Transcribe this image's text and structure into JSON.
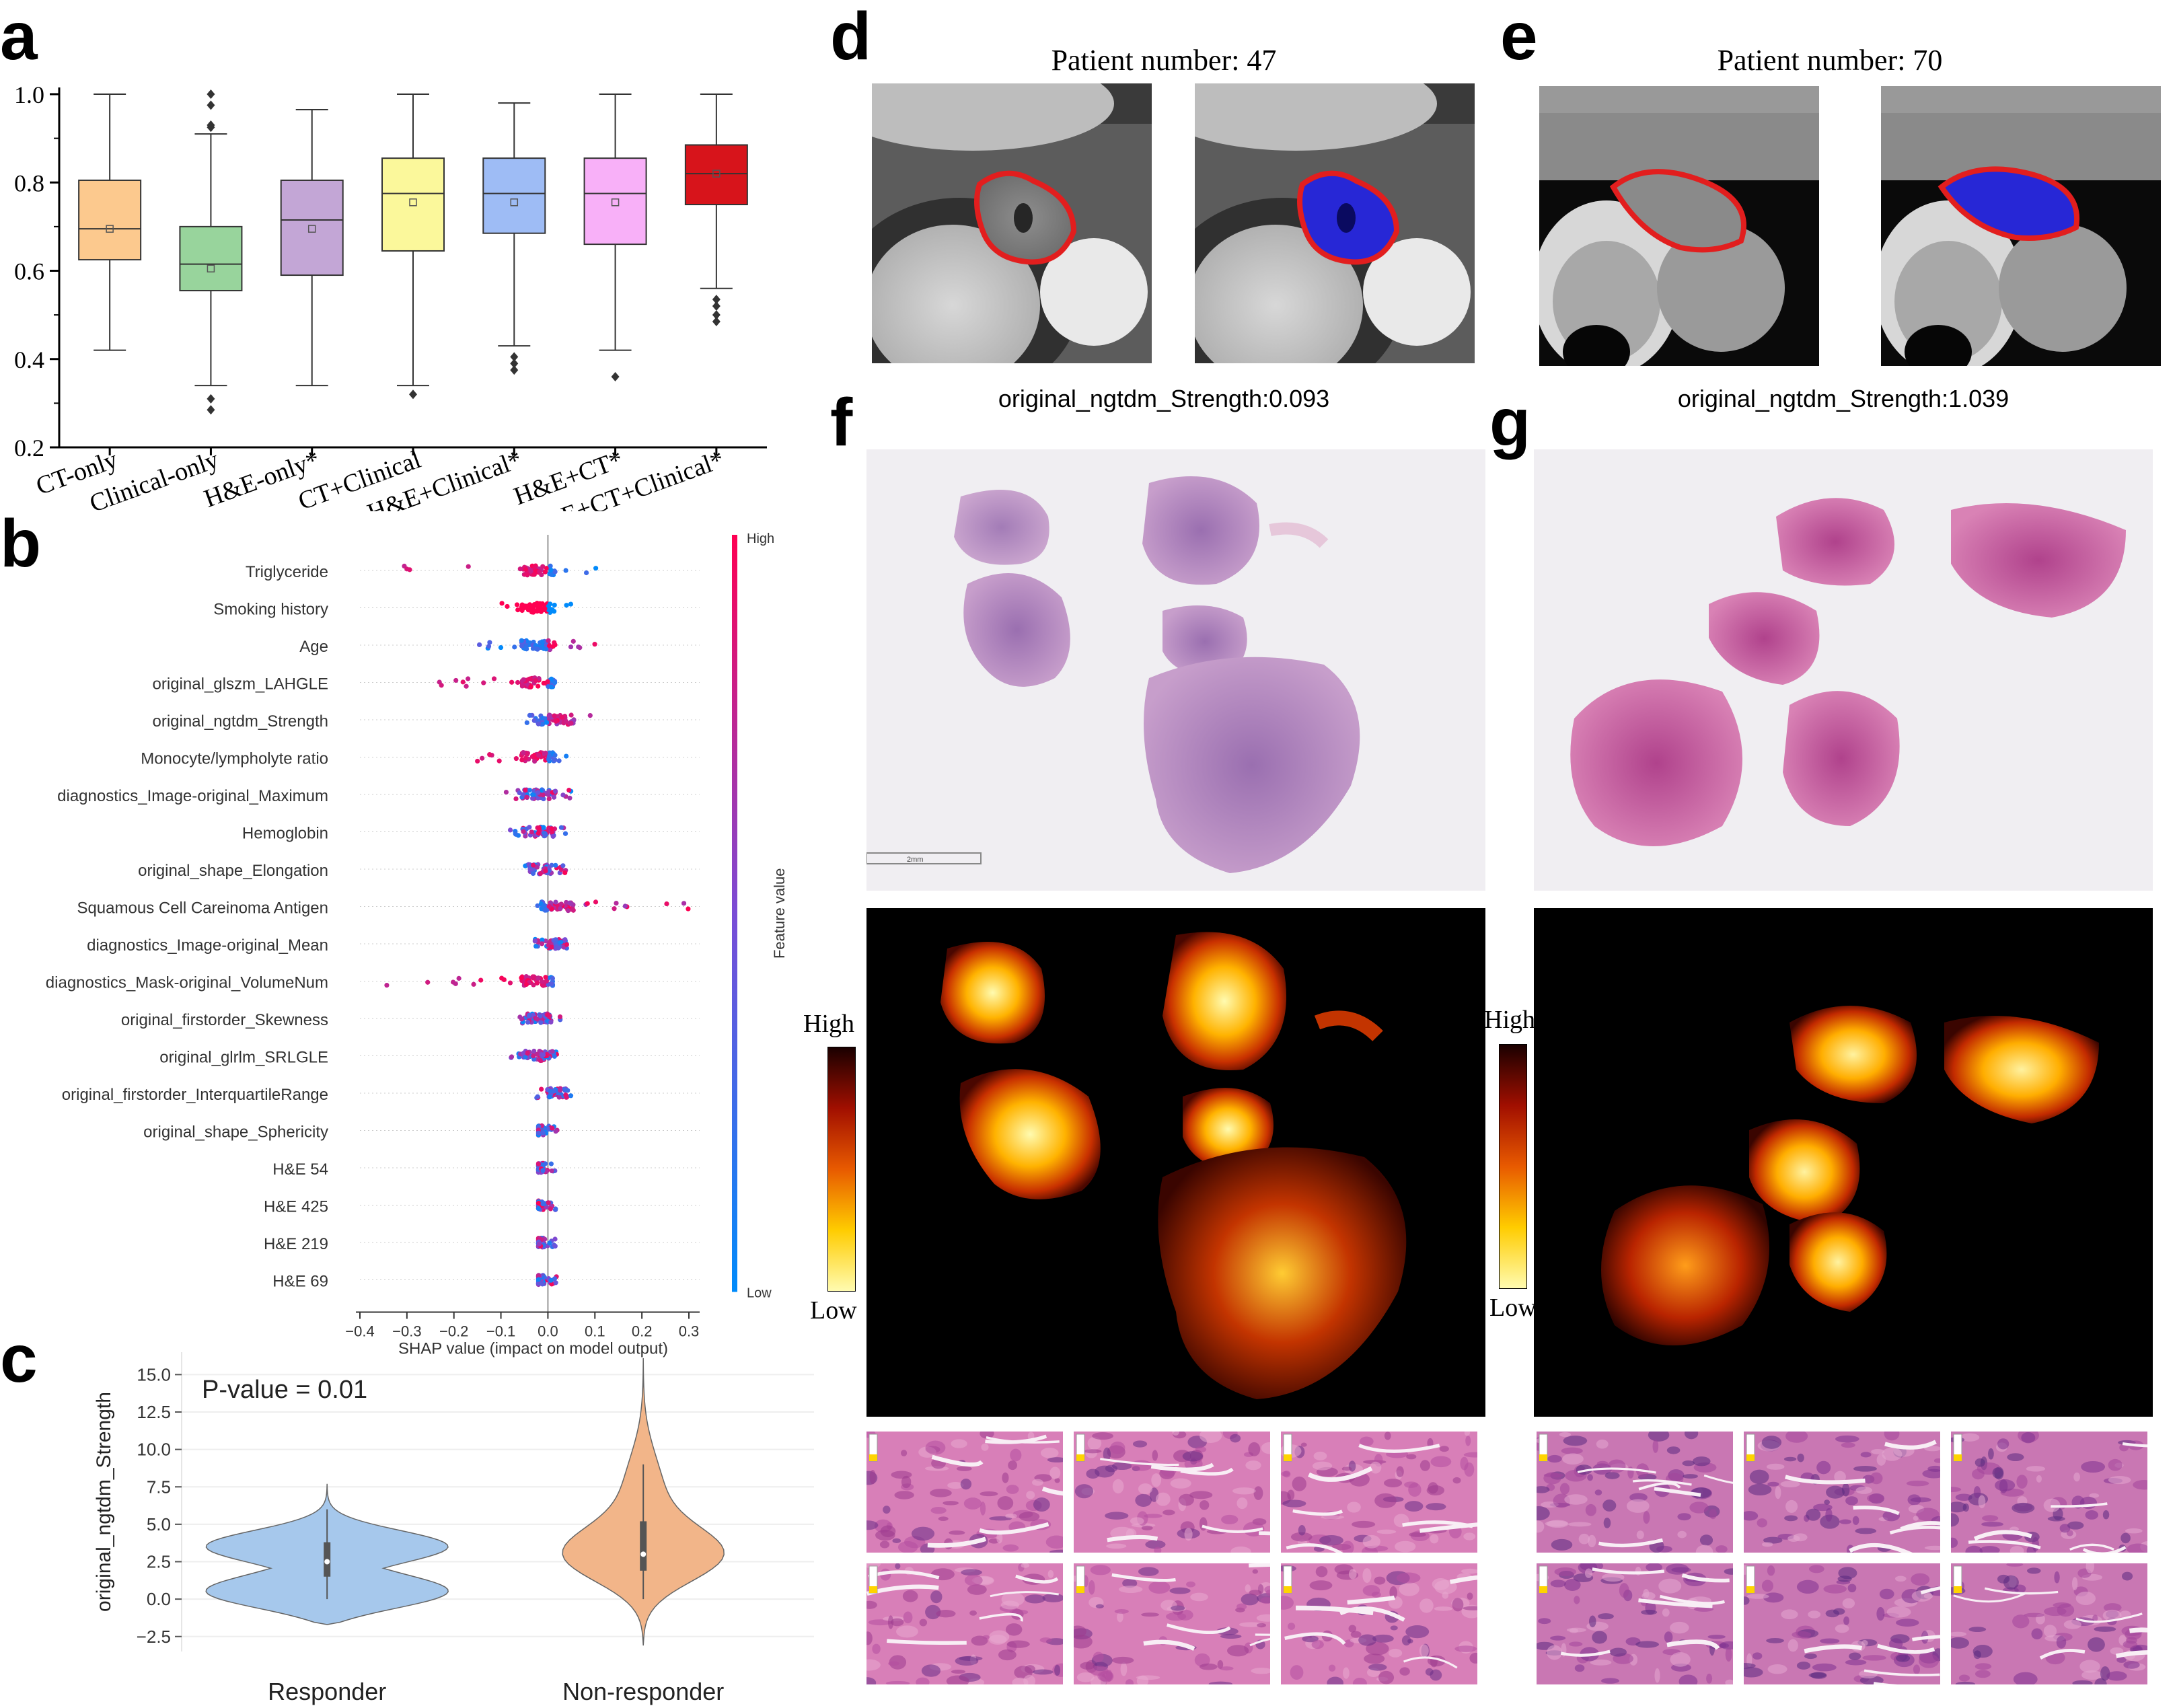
{
  "panels": {
    "a": "a",
    "b": "b",
    "c": "c",
    "d": "d",
    "e": "e",
    "f": "f",
    "g": "g"
  },
  "chart_data": [
    {
      "id": "a",
      "type": "box",
      "categories": [
        "CT-only",
        "Clinical-only",
        "H&E-only*",
        "CT+Clinical",
        "H&E+Clinical*",
        "H&E+CT*",
        "H&E+CT+Clinical*"
      ],
      "colors": [
        "#fcc98e",
        "#98d49c",
        "#c3a6d6",
        "#fbf89b",
        "#9ebcf5",
        "#f8b0f8",
        "#d7141b"
      ],
      "boxes": [
        {
          "whisker_low": 0.42,
          "q1": 0.625,
          "median": 0.695,
          "q3": 0.805,
          "whisker_high": 1.0,
          "mean": 0.695,
          "outliers": []
        },
        {
          "whisker_low": 0.34,
          "q1": 0.555,
          "median": 0.615,
          "q3": 0.7,
          "whisker_high": 0.91,
          "mean": 0.605,
          "outliers": [
            0.285,
            0.31,
            0.925,
            0.93,
            0.975,
            1.0
          ]
        },
        {
          "whisker_low": 0.34,
          "q1": 0.59,
          "median": 0.715,
          "q3": 0.805,
          "whisker_high": 0.965,
          "mean": 0.695,
          "outliers": []
        },
        {
          "whisker_low": 0.34,
          "q1": 0.645,
          "median": 0.775,
          "q3": 0.855,
          "whisker_high": 1.0,
          "mean": 0.755,
          "outliers": [
            0.32
          ]
        },
        {
          "whisker_low": 0.43,
          "q1": 0.685,
          "median": 0.775,
          "q3": 0.855,
          "whisker_high": 0.98,
          "mean": 0.755,
          "outliers": [
            0.375,
            0.39,
            0.405
          ]
        },
        {
          "whisker_low": 0.42,
          "q1": 0.66,
          "median": 0.775,
          "q3": 0.855,
          "whisker_high": 1.0,
          "mean": 0.755,
          "outliers": [
            0.36
          ]
        },
        {
          "whisker_low": 0.56,
          "q1": 0.75,
          "median": 0.82,
          "q3": 0.885,
          "whisker_high": 1.0,
          "mean": 0.82,
          "outliers": [
            0.485,
            0.5,
            0.52,
            0.535
          ]
        }
      ],
      "ylim": [
        0.2,
        1.0
      ],
      "yticks": [
        "0.2",
        "0.4",
        "0.6",
        "0.8",
        "1.0"
      ]
    },
    {
      "id": "b",
      "type": "scatter",
      "features": [
        "Triglyceride",
        "Smoking history",
        "Age",
        "original_glszm_LAHGLE",
        "original_ngtdm_Strength",
        "Monocyte/lympholyte ratio",
        "diagnostics_Image-original_Maximum",
        "Hemoglobin",
        "original_shape_Elongation",
        "Squamous Cell Careinoma Antigen",
        "diagnostics_Image-original_Mean",
        "diagnostics_Mask-original_VolumeNum",
        "original_firstorder_Skewness",
        "original_glrlm_SRLGLE",
        "original_firstorder_InterquartileRange",
        "original_shape_Sphericity",
        "H&E 54",
        "H&E 425",
        "H&E 219",
        "H&E 69"
      ],
      "spreads": [
        [
          -0.4,
          0.16
        ],
        [
          -0.1,
          0.05
        ],
        [
          -0.15,
          0.12
        ],
        [
          -0.25,
          0.03
        ],
        [
          -0.05,
          0.13
        ],
        [
          -0.15,
          0.05
        ],
        [
          -0.09,
          0.05
        ],
        [
          -0.09,
          0.06
        ],
        [
          -0.06,
          0.04
        ],
        [
          -0.03,
          0.31
        ],
        [
          -0.03,
          0.04
        ],
        [
          -0.36,
          0.01
        ],
        [
          -0.06,
          0.03
        ],
        [
          -0.09,
          0.02
        ],
        [
          -0.03,
          0.05
        ],
        [
          -0.02,
          0.02
        ],
        [
          -0.02,
          0.02
        ],
        [
          -0.02,
          0.02
        ],
        [
          -0.02,
          0.02
        ],
        [
          -0.02,
          0.02
        ]
      ],
      "xticks": [
        "-0.4",
        "-0.3",
        "-0.2",
        "-0.1",
        "0.0",
        "0.1",
        "0.2",
        "0.3"
      ],
      "xlim": [
        -0.4,
        0.3
      ],
      "xlabel": "SHAP value (impact on model output)",
      "colorbar_label": "Feature value",
      "colorbar_high": "High",
      "colorbar_low": "Low",
      "color_high": "#ff0052",
      "color_low": "#008bfb"
    },
    {
      "id": "c",
      "type": "violin",
      "categories": [
        "Responder",
        "Non-responder"
      ],
      "colors": [
        "#a6c8ec",
        "#f2b589"
      ],
      "ranges": [
        [
          -1.7,
          7.7
        ],
        [
          -3.1,
          16.1
        ]
      ],
      "medians": [
        2.5,
        3.0
      ],
      "q1q3": [
        [
          1.5,
          3.8
        ],
        [
          1.9,
          5.2
        ]
      ],
      "whiskers": [
        [
          0.0,
          6.0
        ],
        [
          0.0,
          9.0
        ]
      ],
      "ylabel": "original_ngtdm_Strength",
      "yticks": [
        "-2.5",
        "0.0",
        "2.5",
        "5.0",
        "7.5",
        "10.0",
        "12.5",
        "15.0"
      ],
      "ylim": [
        -3.5,
        16.5
      ],
      "annotation": "P-value = 0.01"
    }
  ],
  "panel_d": {
    "title": "Patient number: 47",
    "strength": "original_ngtdm_Strength:0.093"
  },
  "panel_e": {
    "title": "Patient number: 70",
    "strength": "original_ngtdm_Strength:1.039"
  },
  "heatmap_legend": {
    "high": "High",
    "low": "Low"
  },
  "scale_bar_text": "2mm"
}
